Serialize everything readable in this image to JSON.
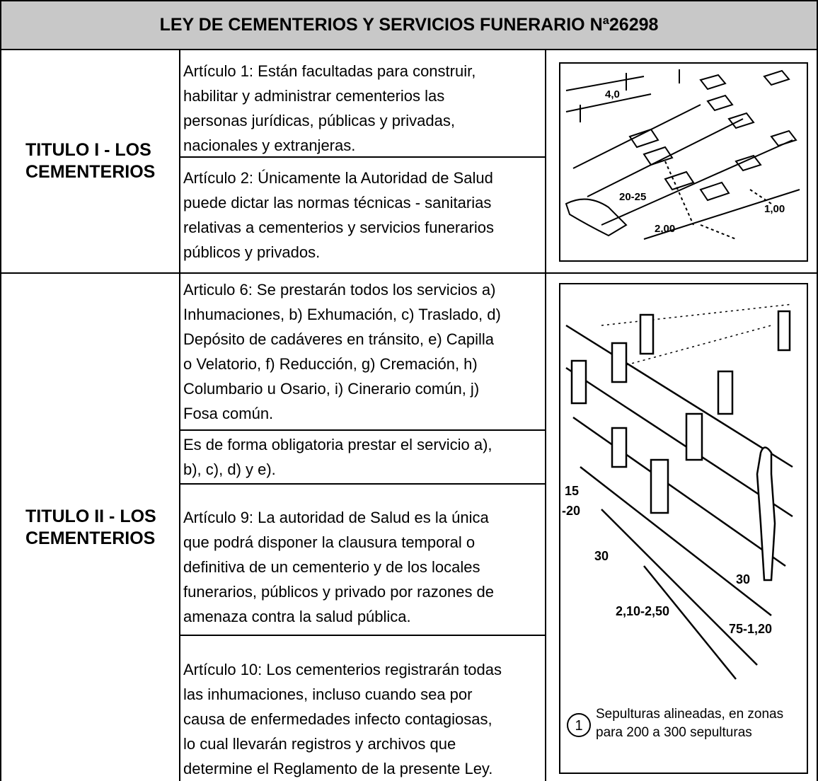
{
  "header": {
    "title": "LEY DE CEMENTERIOS Y SERVICIOS FUNERARIO Nª26298"
  },
  "sections": [
    {
      "title_lines": [
        "TITULO I - LOS",
        "CEMENTERIOS"
      ],
      "articles": [
        {
          "lines": [
            "Artículo 1: Están facultadas para construir,",
            "habilitar y administrar cementerios las",
            "personas jurídicas, públicas y privadas,",
            "nacionales y extranjeras."
          ]
        },
        {
          "lines": [
            "Artículo 2: Únicamente la Autoridad de Salud",
            "puede dictar las normas técnicas - sanitarias",
            "relativas a cementerios y servicios funerarios",
            "públicos y privados."
          ]
        }
      ],
      "figure": {
        "labels": [
          "4,0",
          "20-25",
          "1,00",
          "2,00"
        ]
      }
    },
    {
      "title_lines": [
        "TITULO II - LOS",
        "CEMENTERIOS"
      ],
      "articles": [
        {
          "lines": [
            "Articulo 6: Se prestarán todos los servicios a)",
            "Inhumaciones, b) Exhumación, c) Traslado, d)",
            "Depósito de cadáveres en tránsito, e) Capilla",
            "o Velatorio, f) Reducción, g) Cremación, h)",
            "Columbario u Osario, i) Cinerario común, j)",
            "Fosa común."
          ]
        },
        {
          "lines": [
            "Es de forma obligatoria prestar el servicio a),",
            "b), c), d) y e)."
          ]
        },
        {
          "lines": [
            "Artículo 9: La autoridad de Salud es la única",
            "que podrá disponer la clausura temporal o",
            "definitiva de un cementerio y de los locales",
            "funerarios, públicos y privado por razones de",
            "amenaza contra la salud pública."
          ]
        },
        {
          "lines": [
            "Artículo 10: Los cementerios registrarán todas",
            "las inhumaciones, incluso cuando sea por",
            "causa de enfermedades infecto contagiosas,",
            "lo cual llevarán registros y archivos que",
            "determine el Reglamento de la presente Ley."
          ]
        }
      ],
      "figure": {
        "labels": [
          "15",
          "-20",
          "30",
          "2,10-2,50",
          "75-1,20",
          "30"
        ],
        "caption_number": "1",
        "caption_lines": [
          "Sepulturas alineadas, en zonas",
          "para 200 a 300 sepulturas"
        ]
      }
    }
  ]
}
